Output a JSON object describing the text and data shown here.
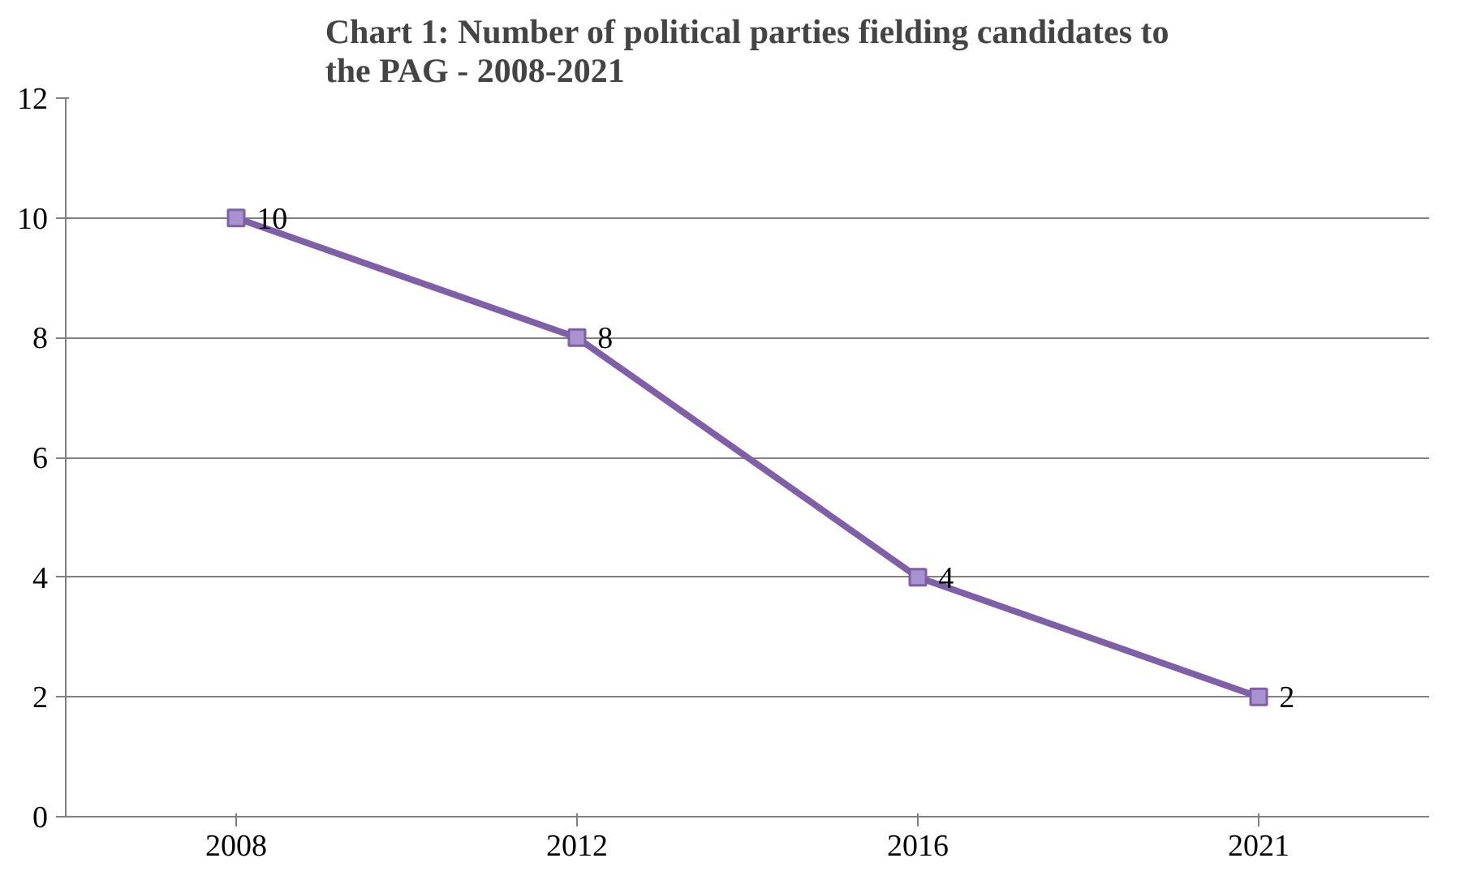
{
  "chart_data": {
    "type": "line",
    "title": "Chart 1: Number of political parties fielding candidates to\nthe PAG - 2008-2021",
    "categories": [
      "2008",
      "2012",
      "2016",
      "2021"
    ],
    "series": [
      {
        "color": "#7f5fa8",
        "values": [
          10,
          8,
          4,
          2
        ]
      }
    ],
    "ylim": [
      0,
      12
    ],
    "yticks": [
      0,
      2,
      4,
      6,
      8,
      10,
      12
    ],
    "grid": "y",
    "marker": "square",
    "line_style": "solid",
    "data_labels": true
  }
}
